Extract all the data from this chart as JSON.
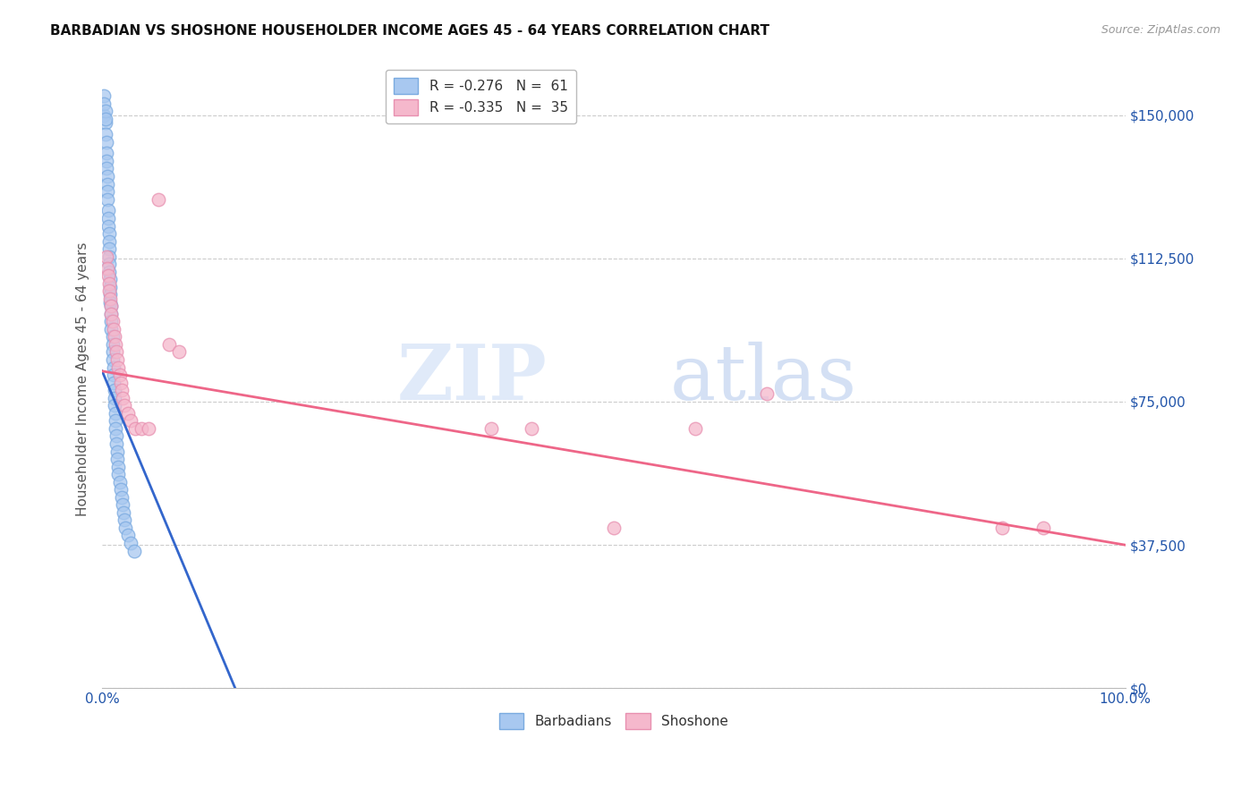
{
  "title": "BARBADIAN VS SHOSHONE HOUSEHOLDER INCOME AGES 45 - 64 YEARS CORRELATION CHART",
  "source": "Source: ZipAtlas.com",
  "ylabel": "Householder Income Ages 45 - 64 years",
  "xlim": [
    0.0,
    1.0
  ],
  "ylim": [
    0,
    162000
  ],
  "yticks": [
    0,
    37500,
    75000,
    112500,
    150000
  ],
  "ytick_labels": [
    "$0",
    "$37,500",
    "$75,000",
    "$112,500",
    "$150,000"
  ],
  "watermark_zip": "ZIP",
  "watermark_atlas": "atlas",
  "barbadian_color": "#a8c8f0",
  "barbadian_edge_color": "#7aaae0",
  "shoshone_color": "#f5b8cc",
  "shoshone_edge_color": "#e890b0",
  "barbadian_line_color": "#3366cc",
  "shoshone_line_color": "#ee6688",
  "background_color": "#ffffff",
  "grid_color": "#cccccc",
  "axis_label_color": "#2255aa",
  "ylabel_color": "#555555",
  "title_color": "#111111",
  "source_color": "#999999",
  "barbadian_x": [
    0.002,
    0.003,
    0.003,
    0.004,
    0.004,
    0.004,
    0.004,
    0.005,
    0.005,
    0.005,
    0.005,
    0.006,
    0.006,
    0.006,
    0.007,
    0.007,
    0.007,
    0.007,
    0.007,
    0.007,
    0.008,
    0.008,
    0.008,
    0.008,
    0.009,
    0.009,
    0.009,
    0.009,
    0.01,
    0.01,
    0.01,
    0.01,
    0.011,
    0.011,
    0.011,
    0.012,
    0.012,
    0.012,
    0.013,
    0.013,
    0.013,
    0.014,
    0.014,
    0.015,
    0.015,
    0.016,
    0.016,
    0.017,
    0.018,
    0.019,
    0.02,
    0.021,
    0.022,
    0.023,
    0.025,
    0.028,
    0.031,
    0.002,
    0.002,
    0.003,
    0.003
  ],
  "barbadian_y": [
    150000,
    148000,
    145000,
    143000,
    140000,
    138000,
    136000,
    134000,
    132000,
    130000,
    128000,
    125000,
    123000,
    121000,
    119000,
    117000,
    115000,
    113000,
    111000,
    109000,
    107000,
    105000,
    103000,
    101000,
    100000,
    98000,
    96000,
    94000,
    92000,
    90000,
    88000,
    86000,
    84000,
    82000,
    80000,
    78000,
    76000,
    74000,
    72000,
    70000,
    68000,
    66000,
    64000,
    62000,
    60000,
    58000,
    56000,
    54000,
    52000,
    50000,
    48000,
    46000,
    44000,
    42000,
    40000,
    38000,
    36000,
    155000,
    153000,
    151000,
    149000
  ],
  "shoshone_x": [
    0.004,
    0.005,
    0.006,
    0.007,
    0.007,
    0.008,
    0.009,
    0.009,
    0.01,
    0.011,
    0.012,
    0.013,
    0.014,
    0.015,
    0.016,
    0.017,
    0.018,
    0.019,
    0.02,
    0.022,
    0.025,
    0.028,
    0.032,
    0.038,
    0.045,
    0.055,
    0.065,
    0.075,
    0.38,
    0.42,
    0.5,
    0.58,
    0.65,
    0.88,
    0.92
  ],
  "shoshone_y": [
    113000,
    110000,
    108000,
    106000,
    104000,
    102000,
    100000,
    98000,
    96000,
    94000,
    92000,
    90000,
    88000,
    86000,
    84000,
    82000,
    80000,
    78000,
    76000,
    74000,
    72000,
    70000,
    68000,
    68000,
    68000,
    128000,
    90000,
    88000,
    68000,
    68000,
    42000,
    68000,
    77000,
    42000,
    42000
  ],
  "barbadian_line_x0": 0.0,
  "barbadian_line_y0": 83000,
  "barbadian_line_x1": 0.13,
  "barbadian_line_y1": 0,
  "shoshone_line_x0": 0.0,
  "shoshone_line_y0": 83000,
  "shoshone_line_x1": 1.0,
  "shoshone_line_y1": 37500
}
